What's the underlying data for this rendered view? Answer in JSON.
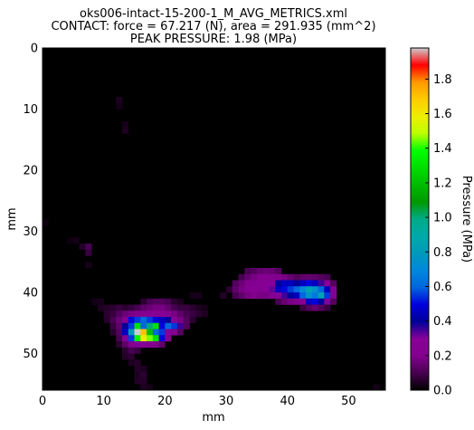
{
  "chart_data": {
    "type": "heatmap",
    "title_lines": [
      "oks006-intact-15-200-1_M_AVG_METRICS.xml",
      "CONTACT: force = 67.217 (N), area = 291.935 (mm^2)",
      "PEAK PRESSURE: 1.98 (MPa)"
    ],
    "xlabel": "mm",
    "ylabel": "mm",
    "xlim": [
      0,
      56
    ],
    "ylim": [
      56,
      0
    ],
    "x_ticks": [
      0,
      10,
      20,
      30,
      40,
      50
    ],
    "y_ticks": [
      0,
      10,
      20,
      30,
      40,
      50
    ],
    "grid": false,
    "background_color": "#000000",
    "colorbar": {
      "label": "Pressure (MPa)",
      "range": [
        0.0,
        1.98
      ],
      "ticks": [
        "0.0",
        "0.2",
        "0.4",
        "0.6",
        "0.8",
        "1.0",
        "1.2",
        "1.4",
        "1.6",
        "1.8"
      ],
      "colormap": "nipy_spectral",
      "colormap_stops": [
        [
          0.0,
          "#000000"
        ],
        [
          0.05,
          "#470051"
        ],
        [
          0.1,
          "#83008e"
        ],
        [
          0.15,
          "#880099"
        ],
        [
          0.2,
          "#000098"
        ],
        [
          0.25,
          "#0000dd"
        ],
        [
          0.3,
          "#0066dd"
        ],
        [
          0.35,
          "#0088dd"
        ],
        [
          0.4,
          "#0099bb"
        ],
        [
          0.45,
          "#00aaaa"
        ],
        [
          0.5,
          "#00aa88"
        ],
        [
          0.55,
          "#009900"
        ],
        [
          0.6,
          "#00bb00"
        ],
        [
          0.65,
          "#00dd00"
        ],
        [
          0.7,
          "#00ff00"
        ],
        [
          0.75,
          "#bbff00"
        ],
        [
          0.8,
          "#eeee00"
        ],
        [
          0.85,
          "#ffcc00"
        ],
        [
          0.9,
          "#ff9900"
        ],
        [
          0.95,
          "#ff0000"
        ],
        [
          1.0,
          "#cccccc"
        ]
      ]
    },
    "cells_note": "each cell: [row_mm, col_mm, pressure_MPa]; unlisted cells are 0",
    "cells": [
      [
        8,
        12,
        0.04
      ],
      [
        9,
        12,
        0.03
      ],
      [
        12,
        13,
        0.03
      ],
      [
        13,
        13,
        0.04
      ],
      [
        28,
        0,
        0.02
      ],
      [
        31,
        4,
        0.02
      ],
      [
        31,
        5,
        0.03
      ],
      [
        32,
        6,
        0.05
      ],
      [
        32,
        7,
        0.1
      ],
      [
        33,
        7,
        0.08
      ],
      [
        35,
        7,
        0.03
      ],
      [
        36,
        33,
        0.1
      ],
      [
        36,
        34,
        0.12
      ],
      [
        36,
        35,
        0.15
      ],
      [
        36,
        36,
        0.16
      ],
      [
        36,
        37,
        0.15
      ],
      [
        36,
        38,
        0.12
      ],
      [
        37,
        32,
        0.1
      ],
      [
        37,
        33,
        0.15
      ],
      [
        37,
        34,
        0.18
      ],
      [
        37,
        35,
        0.2
      ],
      [
        37,
        36,
        0.22
      ],
      [
        37,
        37,
        0.22
      ],
      [
        37,
        38,
        0.2
      ],
      [
        37,
        39,
        0.18
      ],
      [
        37,
        40,
        0.15
      ],
      [
        37,
        41,
        0.12
      ],
      [
        37,
        42,
        0.14
      ],
      [
        37,
        43,
        0.15
      ],
      [
        37,
        44,
        0.14
      ],
      [
        37,
        45,
        0.12
      ],
      [
        37,
        46,
        0.1
      ],
      [
        38,
        31,
        0.12
      ],
      [
        38,
        32,
        0.16
      ],
      [
        38,
        33,
        0.2
      ],
      [
        38,
        34,
        0.22
      ],
      [
        38,
        35,
        0.24
      ],
      [
        38,
        36,
        0.26
      ],
      [
        38,
        37,
        0.3
      ],
      [
        38,
        38,
        0.4
      ],
      [
        38,
        39,
        0.45
      ],
      [
        38,
        40,
        0.45
      ],
      [
        38,
        41,
        0.4
      ],
      [
        38,
        42,
        0.45
      ],
      [
        38,
        43,
        0.5
      ],
      [
        38,
        44,
        0.45
      ],
      [
        38,
        45,
        0.35
      ],
      [
        38,
        46,
        0.25
      ],
      [
        38,
        47,
        0.12
      ],
      [
        39,
        30,
        0.06
      ],
      [
        39,
        31,
        0.14
      ],
      [
        39,
        32,
        0.18
      ],
      [
        39,
        33,
        0.22
      ],
      [
        39,
        34,
        0.24
      ],
      [
        39,
        35,
        0.22
      ],
      [
        39,
        36,
        0.25
      ],
      [
        39,
        37,
        0.32
      ],
      [
        39,
        38,
        0.45
      ],
      [
        39,
        39,
        0.5
      ],
      [
        39,
        40,
        0.55
      ],
      [
        39,
        41,
        0.6
      ],
      [
        39,
        42,
        0.7
      ],
      [
        39,
        43,
        0.85
      ],
      [
        39,
        44,
        0.75
      ],
      [
        39,
        45,
        0.6
      ],
      [
        39,
        46,
        0.45
      ],
      [
        39,
        47,
        0.2
      ],
      [
        40,
        29,
        0.05
      ],
      [
        40,
        31,
        0.1
      ],
      [
        40,
        32,
        0.14
      ],
      [
        40,
        33,
        0.18
      ],
      [
        40,
        34,
        0.2
      ],
      [
        40,
        35,
        0.18
      ],
      [
        40,
        36,
        0.18
      ],
      [
        40,
        37,
        0.22
      ],
      [
        40,
        38,
        0.3
      ],
      [
        40,
        39,
        0.35
      ],
      [
        40,
        40,
        0.4
      ],
      [
        40,
        41,
        0.45
      ],
      [
        40,
        42,
        0.6
      ],
      [
        40,
        43,
        0.75
      ],
      [
        40,
        44,
        0.65
      ],
      [
        40,
        45,
        0.85
      ],
      [
        40,
        46,
        0.55
      ],
      [
        40,
        47,
        0.25
      ],
      [
        41,
        38,
        0.1
      ],
      [
        41,
        39,
        0.15
      ],
      [
        41,
        40,
        0.18
      ],
      [
        41,
        41,
        0.2
      ],
      [
        41,
        42,
        0.25
      ],
      [
        41,
        43,
        0.45
      ],
      [
        41,
        44,
        0.5
      ],
      [
        41,
        45,
        0.4
      ],
      [
        41,
        46,
        0.3
      ],
      [
        41,
        47,
        0.12
      ],
      [
        42,
        42,
        0.08
      ],
      [
        42,
        43,
        0.12
      ],
      [
        42,
        44,
        0.15
      ],
      [
        42,
        45,
        0.12
      ],
      [
        42,
        46,
        0.08
      ],
      [
        40,
        24,
        0.03
      ],
      [
        40,
        25,
        0.03
      ],
      [
        41,
        8,
        0.03
      ],
      [
        41,
        9,
        0.03
      ],
      [
        41,
        16,
        0.06
      ],
      [
        41,
        17,
        0.1
      ],
      [
        41,
        18,
        0.12
      ],
      [
        41,
        19,
        0.12
      ],
      [
        41,
        20,
        0.1
      ],
      [
        41,
        21,
        0.06
      ],
      [
        41,
        22,
        0.04
      ],
      [
        42,
        9,
        0.04
      ],
      [
        42,
        10,
        0.05
      ],
      [
        42,
        11,
        0.06
      ],
      [
        42,
        12,
        0.08
      ],
      [
        42,
        13,
        0.06
      ],
      [
        42,
        14,
        0.08
      ],
      [
        42,
        15,
        0.1
      ],
      [
        42,
        16,
        0.14
      ],
      [
        42,
        17,
        0.16
      ],
      [
        42,
        18,
        0.18
      ],
      [
        42,
        19,
        0.18
      ],
      [
        42,
        20,
        0.15
      ],
      [
        42,
        21,
        0.1
      ],
      [
        42,
        22,
        0.08
      ],
      [
        42,
        23,
        0.08
      ],
      [
        42,
        24,
        0.06
      ],
      [
        42,
        25,
        0.04
      ],
      [
        42,
        26,
        0.03
      ],
      [
        43,
        10,
        0.06
      ],
      [
        43,
        11,
        0.08
      ],
      [
        43,
        12,
        0.12
      ],
      [
        43,
        13,
        0.16
      ],
      [
        43,
        14,
        0.18
      ],
      [
        43,
        15,
        0.2
      ],
      [
        43,
        16,
        0.22
      ],
      [
        43,
        17,
        0.24
      ],
      [
        43,
        18,
        0.25
      ],
      [
        43,
        19,
        0.25
      ],
      [
        43,
        20,
        0.22
      ],
      [
        43,
        21,
        0.18
      ],
      [
        43,
        22,
        0.14
      ],
      [
        43,
        23,
        0.1
      ],
      [
        43,
        24,
        0.08
      ],
      [
        43,
        25,
        0.06
      ],
      [
        43,
        26,
        0.04
      ],
      [
        44,
        10,
        0.05
      ],
      [
        44,
        11,
        0.1
      ],
      [
        44,
        12,
        0.16
      ],
      [
        44,
        13,
        0.22
      ],
      [
        44,
        14,
        0.5
      ],
      [
        44,
        15,
        0.55
      ],
      [
        44,
        16,
        0.6
      ],
      [
        44,
        17,
        0.55
      ],
      [
        44,
        18,
        0.5
      ],
      [
        44,
        19,
        0.45
      ],
      [
        44,
        20,
        0.4
      ],
      [
        44,
        21,
        0.25
      ],
      [
        44,
        22,
        0.18
      ],
      [
        44,
        23,
        0.12
      ],
      [
        44,
        24,
        0.06
      ],
      [
        45,
        11,
        0.08
      ],
      [
        45,
        12,
        0.14
      ],
      [
        45,
        13,
        0.4
      ],
      [
        45,
        14,
        0.55
      ],
      [
        45,
        15,
        1.3
      ],
      [
        45,
        16,
        0.6
      ],
      [
        45,
        17,
        1.0
      ],
      [
        45,
        18,
        1.3
      ],
      [
        45,
        19,
        0.5
      ],
      [
        45,
        20,
        0.6
      ],
      [
        45,
        21,
        0.55
      ],
      [
        45,
        22,
        0.35
      ],
      [
        45,
        23,
        0.12
      ],
      [
        46,
        11,
        0.06
      ],
      [
        46,
        12,
        0.12
      ],
      [
        46,
        13,
        0.45
      ],
      [
        46,
        14,
        0.8
      ],
      [
        46,
        15,
        1.98
      ],
      [
        46,
        16,
        1.7
      ],
      [
        46,
        17,
        1.2
      ],
      [
        46,
        18,
        0.6
      ],
      [
        46,
        19,
        0.55
      ],
      [
        46,
        20,
        0.3
      ],
      [
        46,
        21,
        0.2
      ],
      [
        46,
        22,
        0.12
      ],
      [
        47,
        12,
        0.1
      ],
      [
        47,
        13,
        0.3
      ],
      [
        47,
        14,
        0.55
      ],
      [
        47,
        15,
        1.35
      ],
      [
        47,
        16,
        1.6
      ],
      [
        47,
        17,
        1.45
      ],
      [
        47,
        18,
        1.3
      ],
      [
        47,
        19,
        0.5
      ],
      [
        47,
        20,
        0.2
      ],
      [
        48,
        12,
        0.06
      ],
      [
        48,
        13,
        0.14
      ],
      [
        48,
        14,
        0.2
      ],
      [
        48,
        15,
        0.3
      ],
      [
        48,
        16,
        0.28
      ],
      [
        48,
        17,
        0.22
      ],
      [
        48,
        18,
        0.2
      ],
      [
        48,
        19,
        0.14
      ],
      [
        49,
        13,
        0.06
      ],
      [
        49,
        14,
        0.1
      ],
      [
        49,
        15,
        0.08
      ],
      [
        50,
        13,
        0.05
      ],
      [
        50,
        14,
        0.06
      ],
      [
        51,
        14,
        0.04
      ],
      [
        51,
        15,
        0.05
      ],
      [
        52,
        15,
        0.05
      ],
      [
        52,
        16,
        0.04
      ],
      [
        53,
        15,
        0.04
      ],
      [
        53,
        16,
        0.06
      ],
      [
        54,
        15,
        0.05
      ],
      [
        54,
        16,
        0.05
      ],
      [
        55,
        16,
        0.04
      ],
      [
        55,
        17,
        0.03
      ],
      [
        55,
        54,
        0.03
      ]
    ]
  }
}
